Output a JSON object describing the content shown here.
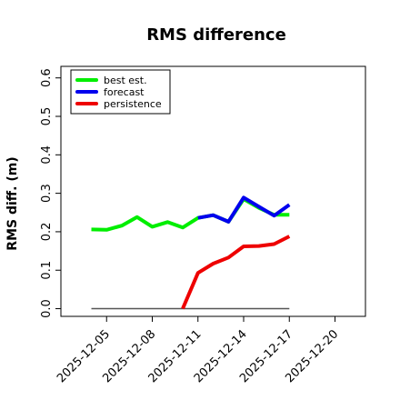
{
  "chart_data": {
    "type": "line",
    "title": "RMS difference",
    "xlabel": "",
    "ylabel": "RMS diff. (m)",
    "x_ticks": [
      {
        "label": "2025-12-05",
        "date": "2025-12-05",
        "color": "#000000"
      },
      {
        "label": "2025-12-08",
        "date": "2025-12-08",
        "color": "#000000"
      },
      {
        "label": "2025-12-11",
        "date": "2025-12-11",
        "color": "#228B22"
      },
      {
        "label": "2025-12-14",
        "date": "2025-12-14",
        "color": "#000000"
      },
      {
        "label": "2025-12-17",
        "date": "2025-12-17",
        "color": "#000000"
      },
      {
        "label": "2025-12-20",
        "date": "2025-12-20",
        "color": "#000000"
      }
    ],
    "xlim": [
      "2025-12-02",
      "2025-12-22"
    ],
    "y_ticks": [
      "0.0",
      "0.1",
      "0.2",
      "0.3",
      "0.4",
      "0.5",
      "0.6"
    ],
    "ylim": [
      -0.02,
      0.63
    ],
    "grid": false,
    "legend_position": "top-left",
    "series": [
      {
        "name": "best est.",
        "color": "#00ee00",
        "points": [
          [
            "2025-12-04",
            0.206
          ],
          [
            "2025-12-05",
            0.205
          ],
          [
            "2025-12-06",
            0.216
          ],
          [
            "2025-12-07",
            0.238
          ],
          [
            "2025-12-08",
            0.213
          ],
          [
            "2025-12-09",
            0.225
          ],
          [
            "2025-12-10",
            0.211
          ],
          [
            "2025-12-11",
            0.236
          ],
          [
            "2025-12-12",
            0.243
          ],
          [
            "2025-12-13",
            0.226
          ],
          [
            "2025-12-14",
            0.285
          ],
          [
            "2025-12-15",
            0.262
          ],
          [
            "2025-12-16",
            0.244
          ],
          [
            "2025-12-17",
            0.244
          ]
        ]
      },
      {
        "name": "forecast",
        "color": "#0000ee",
        "points": [
          [
            "2025-12-11",
            0.236
          ],
          [
            "2025-12-12",
            0.243
          ],
          [
            "2025-12-13",
            0.226
          ],
          [
            "2025-12-14",
            0.289
          ],
          [
            "2025-12-15",
            0.265
          ],
          [
            "2025-12-16",
            0.242
          ],
          [
            "2025-12-17",
            0.27
          ]
        ]
      },
      {
        "name": "persistence",
        "color": "#ee0000",
        "points": [
          [
            "2025-12-10",
            0.0
          ],
          [
            "2025-12-11",
            0.093
          ],
          [
            "2025-12-12",
            0.117
          ],
          [
            "2025-12-13",
            0.133
          ],
          [
            "2025-12-14",
            0.162
          ],
          [
            "2025-12-15",
            0.163
          ],
          [
            "2025-12-16",
            0.168
          ],
          [
            "2025-12-17",
            0.188
          ]
        ]
      },
      {
        "name": "",
        "color": "#555555",
        "points": [
          [
            "2025-12-04",
            0.0
          ],
          [
            "2025-12-17",
            0.0
          ]
        ]
      }
    ]
  }
}
